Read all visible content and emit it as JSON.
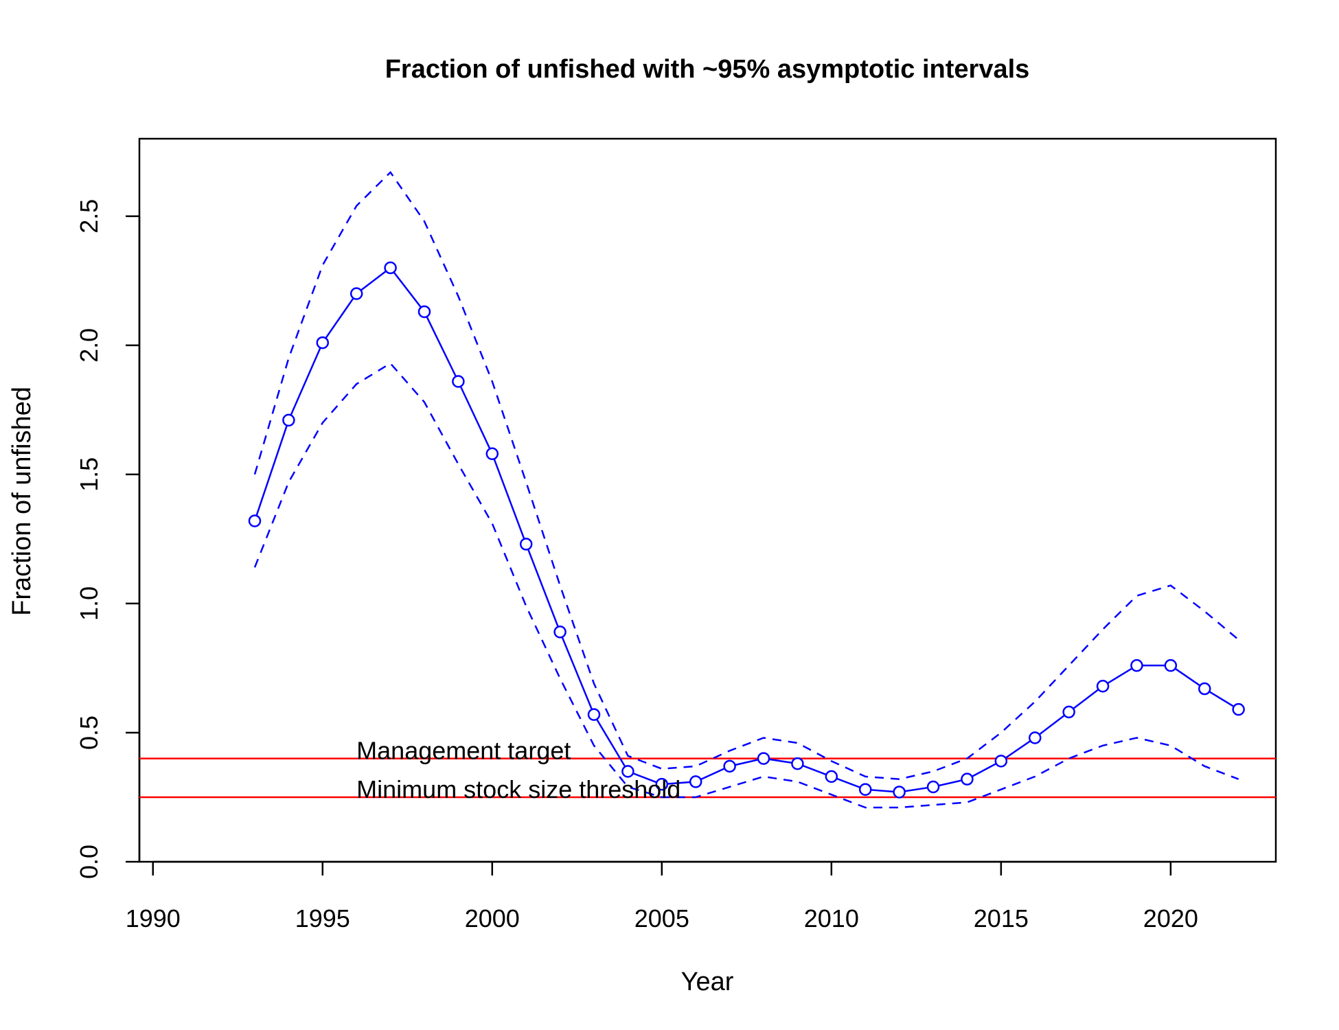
{
  "chart_data": {
    "type": "line",
    "title": "Fraction of unfished with ~95% asymptotic intervals",
    "xlabel": "Year",
    "ylabel": "Fraction of unfished",
    "xlim": [
      1989.6,
      2023.1
    ],
    "ylim": [
      0.0,
      2.8
    ],
    "xticks": [
      "1990",
      "1995",
      "2000",
      "2005",
      "2010",
      "2015",
      "2020"
    ],
    "yticks": [
      "0.0",
      "0.5",
      "1.0",
      "1.5",
      "2.0",
      "2.5"
    ],
    "grid": false,
    "x": [
      1993,
      1994,
      1995,
      1996,
      1997,
      1998,
      1999,
      2000,
      2001,
      2002,
      2003,
      2004,
      2005,
      2006,
      2007,
      2008,
      2009,
      2010,
      2011,
      2012,
      2013,
      2014,
      2015,
      2016,
      2017,
      2018,
      2019,
      2020,
      2021,
      2022
    ],
    "series": [
      {
        "role": "estimate",
        "values": [
          1.32,
          1.71,
          2.01,
          2.2,
          2.3,
          2.13,
          1.86,
          1.58,
          1.23,
          0.89,
          0.57,
          0.35,
          0.3,
          0.31,
          0.37,
          0.4,
          0.38,
          0.33,
          0.28,
          0.27,
          0.29,
          0.32,
          0.39,
          0.48,
          0.58,
          0.68,
          0.76,
          0.76,
          0.67,
          0.59
        ],
        "color": "#0000FF"
      },
      {
        "role": "upper-95",
        "values": [
          1.5,
          1.95,
          2.31,
          2.54,
          2.67,
          2.48,
          2.19,
          1.86,
          1.47,
          1.07,
          0.69,
          0.41,
          0.36,
          0.37,
          0.43,
          0.48,
          0.46,
          0.39,
          0.33,
          0.32,
          0.35,
          0.4,
          0.5,
          0.62,
          0.76,
          0.9,
          1.03,
          1.07,
          0.97,
          0.86
        ],
        "color": "#0000FF"
      },
      {
        "role": "lower-95",
        "values": [
          1.14,
          1.47,
          1.7,
          1.85,
          1.93,
          1.78,
          1.54,
          1.31,
          0.99,
          0.71,
          0.45,
          0.29,
          0.25,
          0.25,
          0.29,
          0.33,
          0.31,
          0.26,
          0.21,
          0.21,
          0.22,
          0.23,
          0.28,
          0.33,
          0.4,
          0.45,
          0.48,
          0.45,
          0.37,
          0.32
        ],
        "color": "#0000FF"
      }
    ],
    "reference_lines": [
      {
        "label": "Management target",
        "y": 0.4,
        "label_x": 1996,
        "color": "#FF0000"
      },
      {
        "label": "Minimum stock size threshold",
        "y": 0.25,
        "label_x": 1996,
        "color": "#FF0000"
      }
    ]
  }
}
